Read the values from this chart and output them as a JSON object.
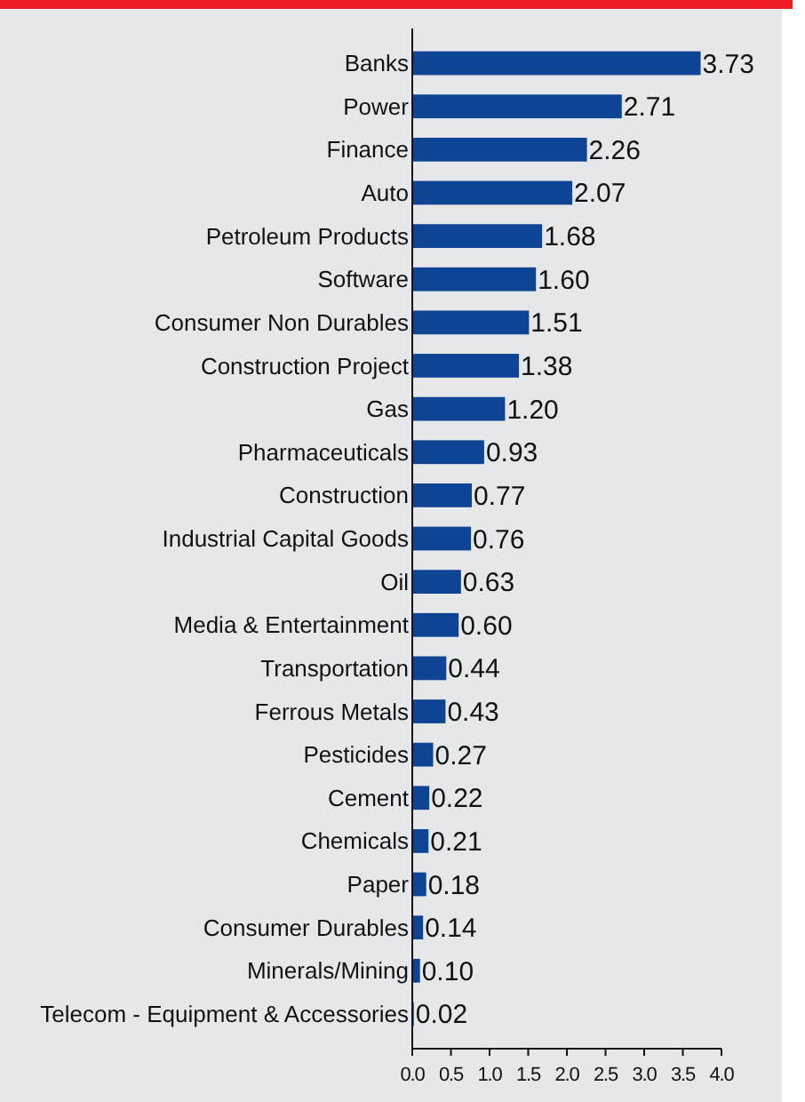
{
  "chart_data": {
    "type": "bar",
    "orientation": "horizontal",
    "categories": [
      "Banks",
      "Power",
      "Finance",
      "Auto",
      "Petroleum Products",
      "Software",
      "Consumer Non Durables",
      "Construction Project",
      "Gas",
      "Pharmaceuticals",
      "Construction",
      "Industrial Capital Goods",
      "Oil",
      "Media & Entertainment",
      "Transportation",
      "Ferrous Metals",
      "Pesticides",
      "Cement",
      "Chemicals",
      "Paper",
      "Consumer Durables",
      "Minerals/Mining",
      "Telecom - Equipment & Accessories"
    ],
    "values": [
      3.73,
      2.71,
      2.26,
      2.07,
      1.68,
      1.6,
      1.51,
      1.38,
      1.2,
      0.93,
      0.77,
      0.76,
      0.63,
      0.6,
      0.44,
      0.43,
      0.27,
      0.22,
      0.21,
      0.18,
      0.14,
      0.1,
      0.02
    ],
    "value_labels": [
      "3.73",
      "2.71",
      "2.26",
      "2.07",
      "1.68",
      "1.60",
      "1.51",
      "1.38",
      "1.20",
      "0.93",
      "0.77",
      "0.76",
      "0.63",
      "0.60",
      "0.44",
      "0.43",
      "0.27",
      "0.22",
      "0.21",
      "0.18",
      "0.14",
      "0.10",
      "0.02"
    ],
    "color": "#0d4594",
    "xlim": [
      0,
      4
    ],
    "xticks": [
      {
        "value": 0,
        "label": "0.0"
      },
      {
        "value": 0.5,
        "label": "0.5"
      },
      {
        "value": 1,
        "label": "1.0"
      },
      {
        "value": 1.5,
        "label": "1.5"
      },
      {
        "value": 2,
        "label": "2.0"
      },
      {
        "value": 2.5,
        "label": "2.5"
      },
      {
        "value": 3,
        "label": "3.0"
      },
      {
        "value": 3.5,
        "label": "3.5"
      },
      {
        "value": 4,
        "label": "4.0"
      }
    ],
    "grid": false
  }
}
